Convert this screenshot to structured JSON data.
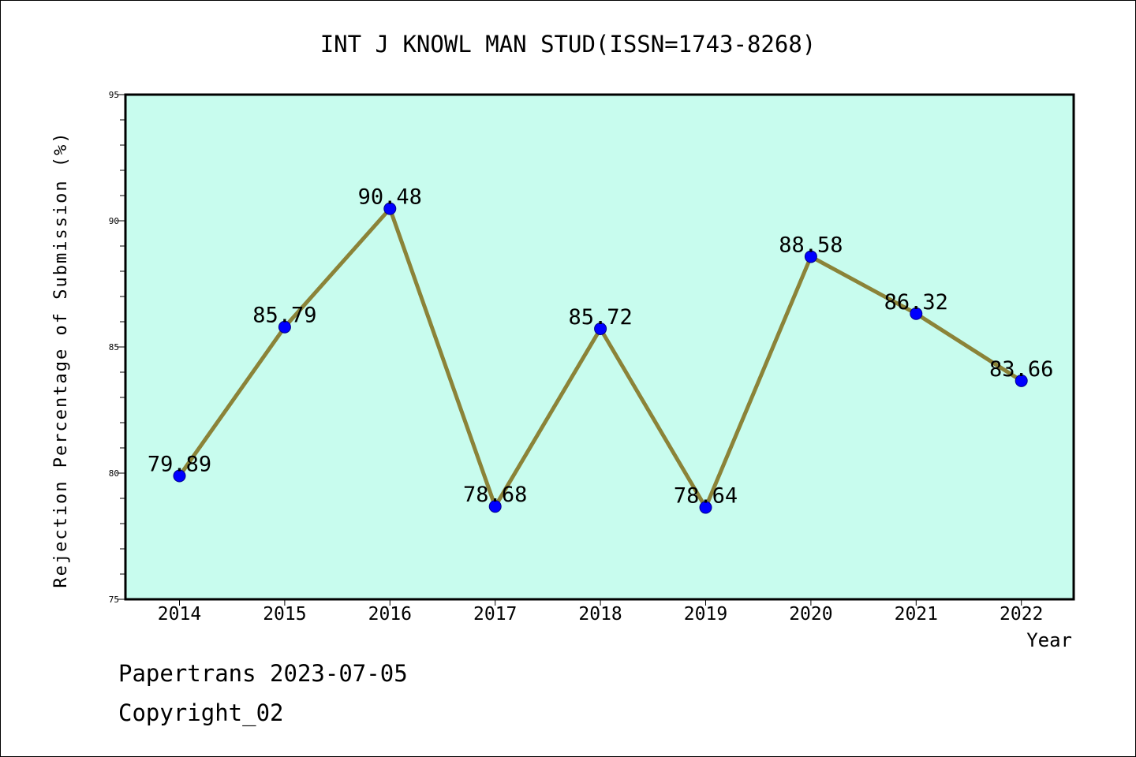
{
  "chart_data": {
    "type": "line",
    "title": "INT J KNOWL MAN STUD(ISSN=1743-8268)",
    "xlabel": "Year",
    "ylabel": "Rejection Percentage of Submission (%)",
    "ylim": [
      75,
      95
    ],
    "yticks": [
      75,
      80,
      85,
      90,
      95
    ],
    "yminor_step": 1,
    "grid": false,
    "categories": [
      "2014",
      "2015",
      "2016",
      "2017",
      "2018",
      "2019",
      "2020",
      "2021",
      "2022"
    ],
    "series": [
      {
        "values": [
          79.89,
          85.79,
          90.48,
          78.68,
          85.72,
          78.64,
          88.58,
          86.32,
          83.66
        ],
        "labels": [
          "79.89",
          "85.79",
          "90.48",
          "78.68",
          "85.72",
          "78.64",
          "88.58",
          "86.32",
          "83.66"
        ]
      }
    ]
  },
  "footer": {
    "line1": "Papertrans 2023-07-05",
    "line2": "Copyright_02"
  },
  "colors": {
    "plot_background": "#c8fcee",
    "line": "#8b8338",
    "marker": "#0000ff",
    "marker_edge": "#00008b",
    "axis": "#000000"
  }
}
